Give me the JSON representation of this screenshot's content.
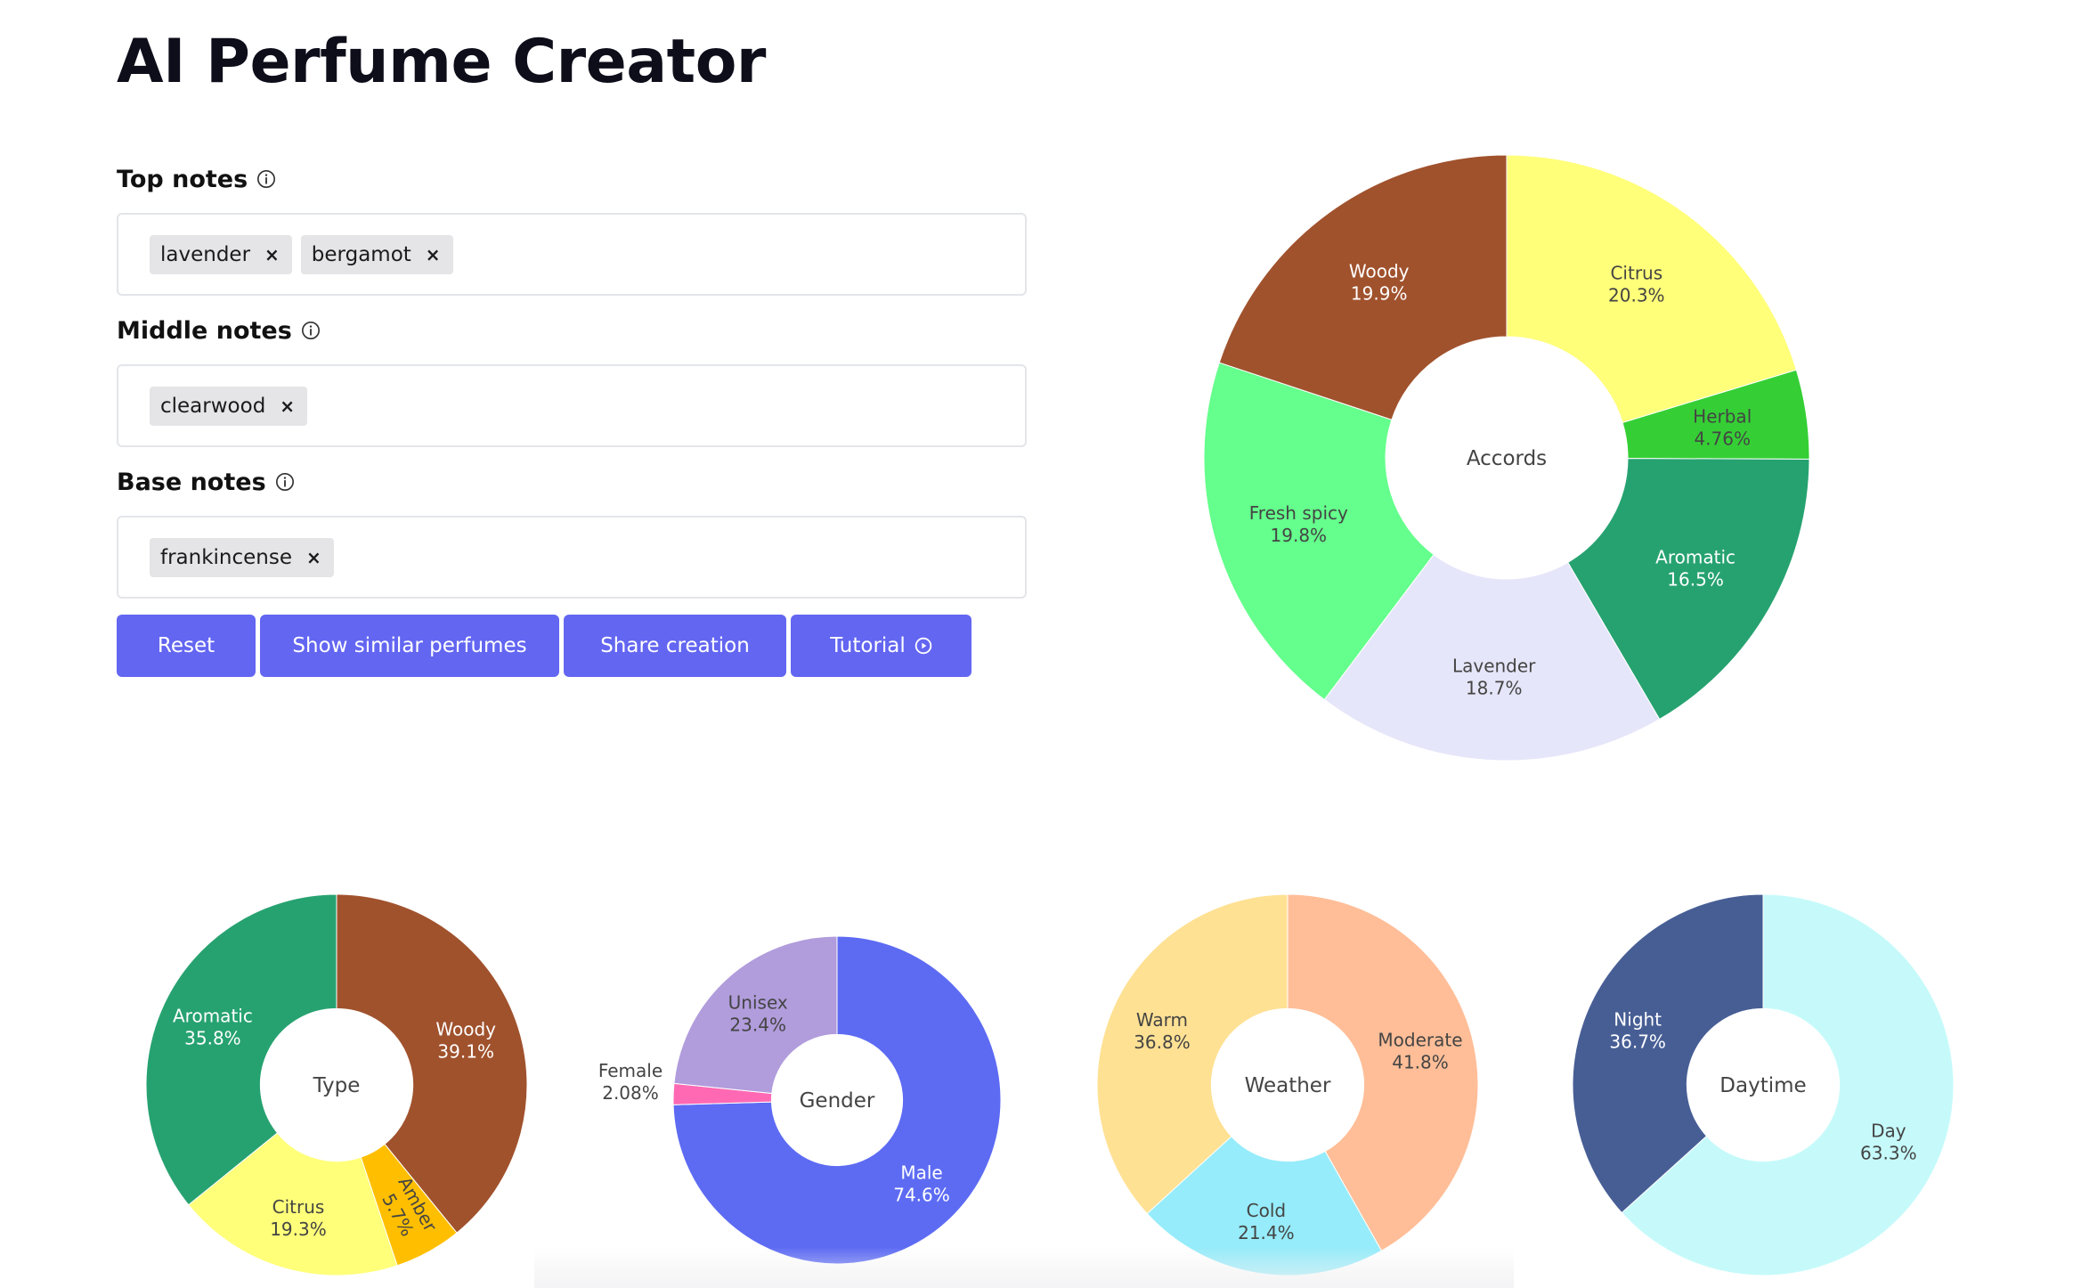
{
  "app": {
    "title": "AI Perfume Creator"
  },
  "notes": {
    "top": {
      "label": "Top notes",
      "chips": [
        "lavender",
        "bergamot"
      ]
    },
    "middle": {
      "label": "Middle notes",
      "chips": [
        "clearwood"
      ]
    },
    "base": {
      "label": "Base notes",
      "chips": [
        "frankincense"
      ]
    }
  },
  "buttons": {
    "reset": "Reset",
    "similar": "Show similar perfumes",
    "share": "Share creation",
    "tutorial": "Tutorial"
  },
  "chart_data": [
    {
      "type": "pie",
      "center_label": "Accords",
      "slices": [
        {
          "label": "Citrus",
          "value": 20.3,
          "display": "20.3%",
          "color": "#ffff7a",
          "text": "#444444"
        },
        {
          "label": "Herbal",
          "value": 4.76,
          "display": "4.76%",
          "color": "#35cf35",
          "text": "#444444"
        },
        {
          "label": "Aromatic",
          "value": 16.5,
          "display": "16.5%",
          "color": "#26a270",
          "text": "#ffffff"
        },
        {
          "label": "Lavender",
          "value": 18.7,
          "display": "18.7%",
          "color": "#e6e6fa",
          "text": "#444444"
        },
        {
          "label": "Fresh spicy",
          "value": 19.8,
          "display": "19.8%",
          "color": "#64ff8c",
          "text": "#444444"
        },
        {
          "label": "Woody",
          "value": 19.9,
          "display": "19.9%",
          "color": "#a0522d",
          "text": "#ffffff"
        }
      ]
    },
    {
      "type": "pie",
      "center_label": "Type",
      "slices": [
        {
          "label": "Woody",
          "value": 39.1,
          "display": "39.1%",
          "color": "#a0522d",
          "text": "#ffffff"
        },
        {
          "label": "Amber",
          "value": 5.7,
          "display": "5.7%",
          "color": "#ffbf00",
          "text": "#444444"
        },
        {
          "label": "Citrus",
          "value": 19.3,
          "display": "19.3%",
          "color": "#ffff7a",
          "text": "#444444"
        },
        {
          "label": "Aromatic",
          "value": 35.8,
          "display": "35.8%",
          "color": "#26a270",
          "text": "#ffffff"
        }
      ]
    },
    {
      "type": "pie",
      "center_label": "Gender",
      "slices": [
        {
          "label": "Male",
          "value": 74.6,
          "display": "74.6%",
          "color": "#5d6bf3",
          "text": "#ffffff"
        },
        {
          "label": "Female",
          "value": 2.08,
          "display": "2.08%",
          "color": "#ff69b4",
          "text": "#444444"
        },
        {
          "label": "Unisex",
          "value": 23.4,
          "display": "23.4%",
          "color": "#b19cdc",
          "text": "#444444"
        }
      ]
    },
    {
      "type": "pie",
      "center_label": "Weather",
      "slices": [
        {
          "label": "Moderate",
          "value": 41.8,
          "display": "41.8%",
          "color": "#ffbe98",
          "text": "#444444"
        },
        {
          "label": "Cold",
          "value": 21.4,
          "display": "21.4%",
          "color": "#96ecfa",
          "text": "#444444"
        },
        {
          "label": "Warm",
          "value": 36.8,
          "display": "36.8%",
          "color": "#ffe194",
          "text": "#444444"
        }
      ]
    },
    {
      "type": "pie",
      "center_label": "Daytime",
      "slices": [
        {
          "label": "Day",
          "value": 63.3,
          "display": "63.3%",
          "color": "#c6fafa",
          "text": "#444444"
        },
        {
          "label": "Night",
          "value": 36.7,
          "display": "36.7%",
          "color": "#475e95",
          "text": "#ffffff"
        }
      ]
    }
  ]
}
